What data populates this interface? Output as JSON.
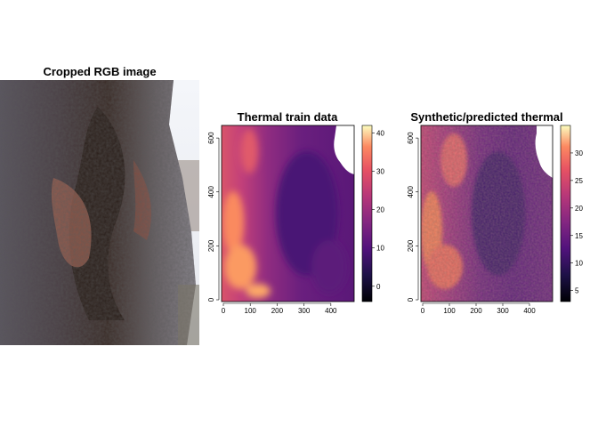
{
  "chart_data": [
    {
      "type": "image",
      "title": "Cropped RGB image"
    },
    {
      "type": "heatmap",
      "title": "Thermal train data",
      "xlim": [
        0,
        480
      ],
      "ylim": [
        0,
        640
      ],
      "x_ticks": [
        0,
        100,
        200,
        300,
        400
      ],
      "y_ticks": [
        0,
        200,
        400,
        600
      ],
      "colorbar": {
        "min": -4,
        "max": 42,
        "ticks": [
          0,
          10,
          20,
          30,
          40
        ],
        "palette": "magma"
      }
    },
    {
      "type": "heatmap",
      "title": "Synthetic/predicted thermal",
      "xlim": [
        0,
        480
      ],
      "ylim": [
        0,
        640
      ],
      "x_ticks": [
        0,
        100,
        200,
        300,
        400
      ],
      "y_ticks": [
        0,
        200,
        400,
        600
      ],
      "colorbar": {
        "min": 3,
        "max": 35,
        "ticks": [
          5,
          10,
          15,
          20,
          25,
          30
        ],
        "palette": "magma"
      }
    }
  ]
}
